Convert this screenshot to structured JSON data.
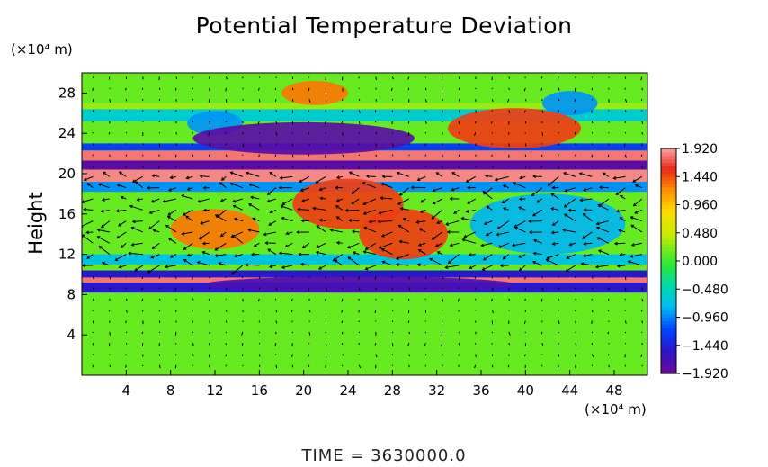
{
  "title": "Potential Temperature Deviation",
  "time_label": "TIME  =  3630000.0",
  "chart_data": {
    "type": "heatmap",
    "title": "Potential Temperature Deviation",
    "xlabel": "",
    "ylabel": "Height",
    "x_unit": "(×10⁴ m)",
    "y_unit": "(×10⁴ m)",
    "xlim": [
      0,
      51
    ],
    "ylim": [
      0,
      30
    ],
    "x_ticks": [
      4,
      8,
      12,
      16,
      20,
      24,
      28,
      32,
      36,
      40,
      44,
      48
    ],
    "y_ticks": [
      4,
      8,
      12,
      16,
      20,
      24,
      28
    ],
    "colorbar": {
      "min": -1.92,
      "max": 1.92,
      "tick_values": [
        1.92,
        1.44,
        0.96,
        0.48,
        0.0,
        -0.48,
        -0.96,
        -1.44,
        -1.92
      ],
      "tick_labels": [
        "1.920",
        "1.440",
        "0.960",
        "0.480",
        "0.000",
        "−0.480",
        "−0.960",
        "−1.440",
        "−1.920"
      ]
    },
    "overlay": "velocity vectors",
    "features": [
      {
        "x": 21,
        "y": 28,
        "value": 1.3
      },
      {
        "x": 12,
        "y": 25,
        "value": -0.9
      },
      {
        "x": 44,
        "y": 27,
        "value": -0.9
      },
      {
        "x": 39,
        "y": 24.5,
        "value": 1.5
      },
      {
        "x": 20,
        "y": 23.5,
        "value": -1.8
      },
      {
        "x": 24,
        "y": 17,
        "value": 1.5
      },
      {
        "x": 29,
        "y": 14,
        "value": 1.5
      },
      {
        "x": 12,
        "y": 14.5,
        "value": 1.3
      },
      {
        "x": 42,
        "y": 15,
        "value": -0.8
      },
      {
        "x": 25,
        "y": 9,
        "value": -1.7
      }
    ]
  }
}
